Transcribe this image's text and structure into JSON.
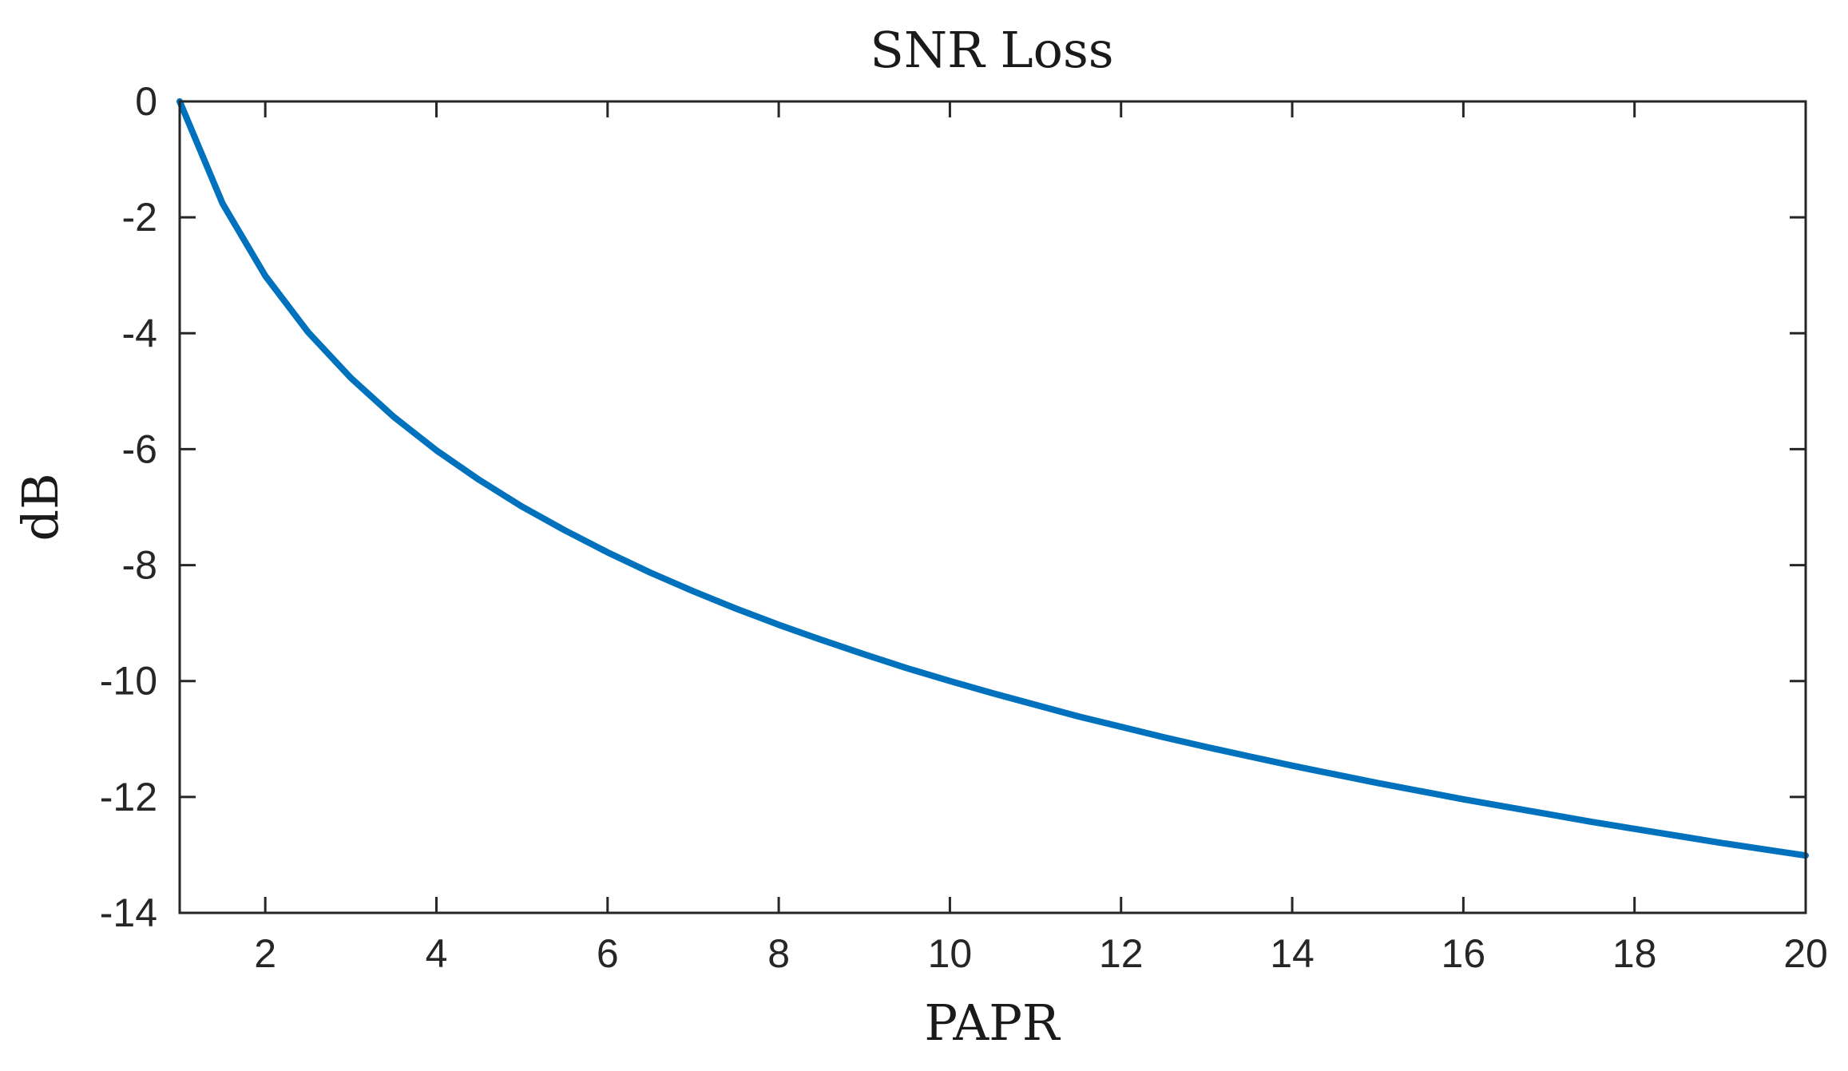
{
  "chart_data": {
    "type": "line",
    "title": "SNR Loss",
    "xlabel": "PAPR",
    "ylabel": "dB",
    "xlim": [
      1,
      20
    ],
    "ylim": [
      -14,
      0
    ],
    "xticks": [
      2,
      4,
      6,
      8,
      10,
      12,
      14,
      16,
      18,
      20
    ],
    "yticks": [
      0,
      -2,
      -4,
      -6,
      -8,
      -10,
      -12,
      -14
    ],
    "xtick_labels": [
      "2",
      "4",
      "6",
      "8",
      "10",
      "12",
      "14",
      "16",
      "18",
      "20"
    ],
    "ytick_labels": [
      "0",
      "-2",
      "-4",
      "-6",
      "-8",
      "-10",
      "-12",
      "-14"
    ],
    "grid": false,
    "series": [
      {
        "color": "#0072bd",
        "x": [
          1,
          1.5,
          2,
          2.5,
          3,
          3.5,
          4,
          4.5,
          5,
          5.5,
          6,
          6.5,
          7,
          7.5,
          8,
          8.5,
          9,
          9.5,
          10,
          10.5,
          11,
          11.5,
          12,
          12.5,
          13,
          13.5,
          14,
          14.5,
          15,
          15.5,
          16,
          16.5,
          17,
          17.5,
          18,
          18.5,
          19,
          19.5,
          20
        ],
        "y": [
          0,
          -1.76,
          -3.01,
          -3.98,
          -4.77,
          -5.44,
          -6.02,
          -6.53,
          -6.99,
          -7.4,
          -7.78,
          -8.13,
          -8.45,
          -8.75,
          -9.03,
          -9.29,
          -9.54,
          -9.78,
          -10.0,
          -10.21,
          -10.41,
          -10.61,
          -10.79,
          -10.97,
          -11.14,
          -11.3,
          -11.46,
          -11.61,
          -11.76,
          -11.9,
          -12.04,
          -12.17,
          -12.3,
          -12.43,
          -12.55,
          -12.67,
          -12.79,
          -12.9,
          -13.01
        ]
      }
    ]
  }
}
